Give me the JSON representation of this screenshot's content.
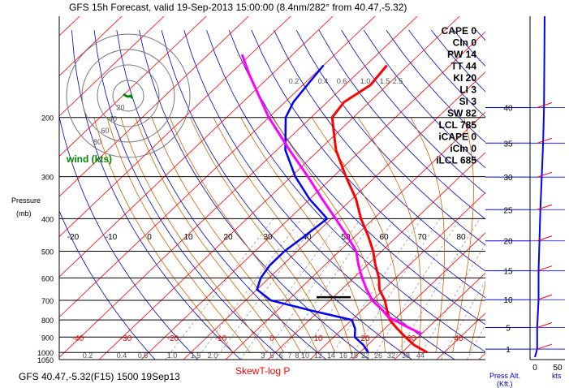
{
  "header": {
    "title": "GFS 15h Forecast, valid 19-Sep-2013 15:00:00 (8.4nm/282° from 40.47,-5.32)"
  },
  "footer": {
    "left": "GFS 40.47,-5.32(F15) 1500 19Sep13",
    "center": "SkewT-log P",
    "press_alt_label_1": "Press Alt.",
    "press_alt_label_2": "(Kft.)",
    "kts_label": "kts"
  },
  "axis": {
    "pressure_label": "Pressure",
    "pressure_unit": "(mb)"
  },
  "hodograph": {
    "label": "wind (kts)",
    "ring_labels": [
      "20",
      "40",
      "60",
      "80"
    ]
  },
  "indices": [
    {
      "label": "CAPE 0"
    },
    {
      "label": "CIn 0"
    },
    {
      "label": "PW 14"
    },
    {
      "label": "TT 44"
    },
    {
      "label": "KI 20"
    },
    {
      "label": "LI 3"
    },
    {
      "label": "SI 3"
    },
    {
      "label": "SW 82"
    },
    {
      "label": "LCL 785"
    },
    {
      "label": "iCAPE 0"
    },
    {
      "label": "iCIn 0"
    },
    {
      "label": "iLCL 685"
    }
  ],
  "colors": {
    "temperature": "#ff0000",
    "dewpoint": "#0000ff",
    "parcel": "#ff00ff",
    "isobars": "#000000",
    "isotherms": "#ff0000",
    "dry_adiabats": "#0000cc",
    "moist_adiabats": "#cc6600",
    "mixing_ratio": "#999999"
  },
  "chart_data": {
    "type": "line",
    "title": "GFS 15h Forecast, valid 19-Sep-2013 15:00:00 (8.4nm/282° from 40.47,-5.32)",
    "xlabel": "SkewT-log P",
    "ylabel": "Pressure (mb)",
    "y_scale": "log",
    "ylim": [
      1050,
      100
    ],
    "xlim": [
      -40,
      40
    ],
    "pressure_ticks": [
      200,
      300,
      400,
      500,
      600,
      700,
      800,
      900,
      1000,
      1050
    ],
    "temperature_ticks_low": [
      -40,
      -30,
      -20,
      -10,
      0,
      10,
      20,
      30,
      40
    ],
    "temperature_ticks_mid": [
      -20,
      -10,
      0,
      10,
      20,
      30,
      40,
      50,
      60,
      70,
      80
    ],
    "mixing_ratio_labels_upper": [
      "0.2",
      "0.4",
      "0.6",
      "1.0",
      "1.5",
      "2.5"
    ],
    "mixing_ratio_labels_lower": [
      "0.2",
      "0.4",
      "0.6",
      "1.0",
      "1.5",
      "2.0",
      "3",
      "5",
      "6",
      "7",
      "8",
      "10",
      "12",
      "14",
      "16",
      "18",
      "22",
      "26",
      "32",
      "38",
      "44"
    ],
    "height_ticks_kft": [
      1,
      5,
      10,
      15,
      20,
      25,
      30,
      35,
      40
    ],
    "wind_ticks_kts": [
      0,
      50
    ],
    "series": [
      {
        "name": "temperature",
        "points": [
          {
            "p": 1000,
            "t": 26
          },
          {
            "p": 950,
            "t": 21
          },
          {
            "p": 900,
            "t": 17
          },
          {
            "p": 850,
            "t": 13
          },
          {
            "p": 800,
            "t": 9
          },
          {
            "p": 750,
            "t": 6
          },
          {
            "p": 700,
            "t": 3
          },
          {
            "p": 650,
            "t": -1
          },
          {
            "p": 600,
            "t": -4
          },
          {
            "p": 550,
            "t": -8
          },
          {
            "p": 500,
            "t": -12
          },
          {
            "p": 450,
            "t": -17
          },
          {
            "p": 400,
            "t": -23
          },
          {
            "p": 350,
            "t": -29
          },
          {
            "p": 300,
            "t": -37
          },
          {
            "p": 250,
            "t": -46
          },
          {
            "p": 200,
            "t": -55
          },
          {
            "p": 180,
            "t": -56
          },
          {
            "p": 160,
            "t": -54
          },
          {
            "p": 140,
            "t": -55
          }
        ]
      },
      {
        "name": "dewpoint",
        "points": [
          {
            "p": 1000,
            "t": 12
          },
          {
            "p": 950,
            "t": 9
          },
          {
            "p": 900,
            "t": 5
          },
          {
            "p": 850,
            "t": 3
          },
          {
            "p": 800,
            "t": 0
          },
          {
            "p": 750,
            "t": -12
          },
          {
            "p": 700,
            "t": -24
          },
          {
            "p": 650,
            "t": -30
          },
          {
            "p": 600,
            "t": -32
          },
          {
            "p": 550,
            "t": -33
          },
          {
            "p": 500,
            "t": -33
          },
          {
            "p": 450,
            "t": -32
          },
          {
            "p": 400,
            "t": -31
          },
          {
            "p": 350,
            "t": -40
          },
          {
            "p": 300,
            "t": -49
          },
          {
            "p": 250,
            "t": -58
          },
          {
            "p": 200,
            "t": -66
          },
          {
            "p": 180,
            "t": -68
          },
          {
            "p": 160,
            "t": -69
          },
          {
            "p": 140,
            "t": -70
          }
        ]
      },
      {
        "name": "parcel",
        "points": [
          {
            "p": 880,
            "t": 20
          },
          {
            "p": 840,
            "t": 15
          },
          {
            "p": 800,
            "t": 10
          },
          {
            "p": 785,
            "t": 8
          },
          {
            "p": 750,
            "t": 5
          },
          {
            "p": 700,
            "t": 0
          },
          {
            "p": 650,
            "t": -4
          },
          {
            "p": 600,
            "t": -8
          },
          {
            "p": 550,
            "t": -12
          },
          {
            "p": 500,
            "t": -16
          },
          {
            "p": 450,
            "t": -22
          },
          {
            "p": 400,
            "t": -29
          },
          {
            "p": 350,
            "t": -37
          },
          {
            "p": 300,
            "t": -46
          },
          {
            "p": 250,
            "t": -57
          },
          {
            "p": 200,
            "t": -70
          },
          {
            "p": 150,
            "t": -85
          },
          {
            "p": 130,
            "t": -92
          }
        ]
      }
    ],
    "lcl_pressure": 685,
    "wind_profile_kts": [
      {
        "kft": 1,
        "speed": 5
      },
      {
        "kft": 5,
        "speed": 5
      },
      {
        "kft": 10,
        "speed": 8
      },
      {
        "kft": 15,
        "speed": 8
      },
      {
        "kft": 20,
        "speed": 10
      },
      {
        "kft": 25,
        "speed": 12
      },
      {
        "kft": 30,
        "speed": 15
      },
      {
        "kft": 35,
        "speed": 18
      },
      {
        "kft": 40,
        "speed": 20
      }
    ]
  }
}
